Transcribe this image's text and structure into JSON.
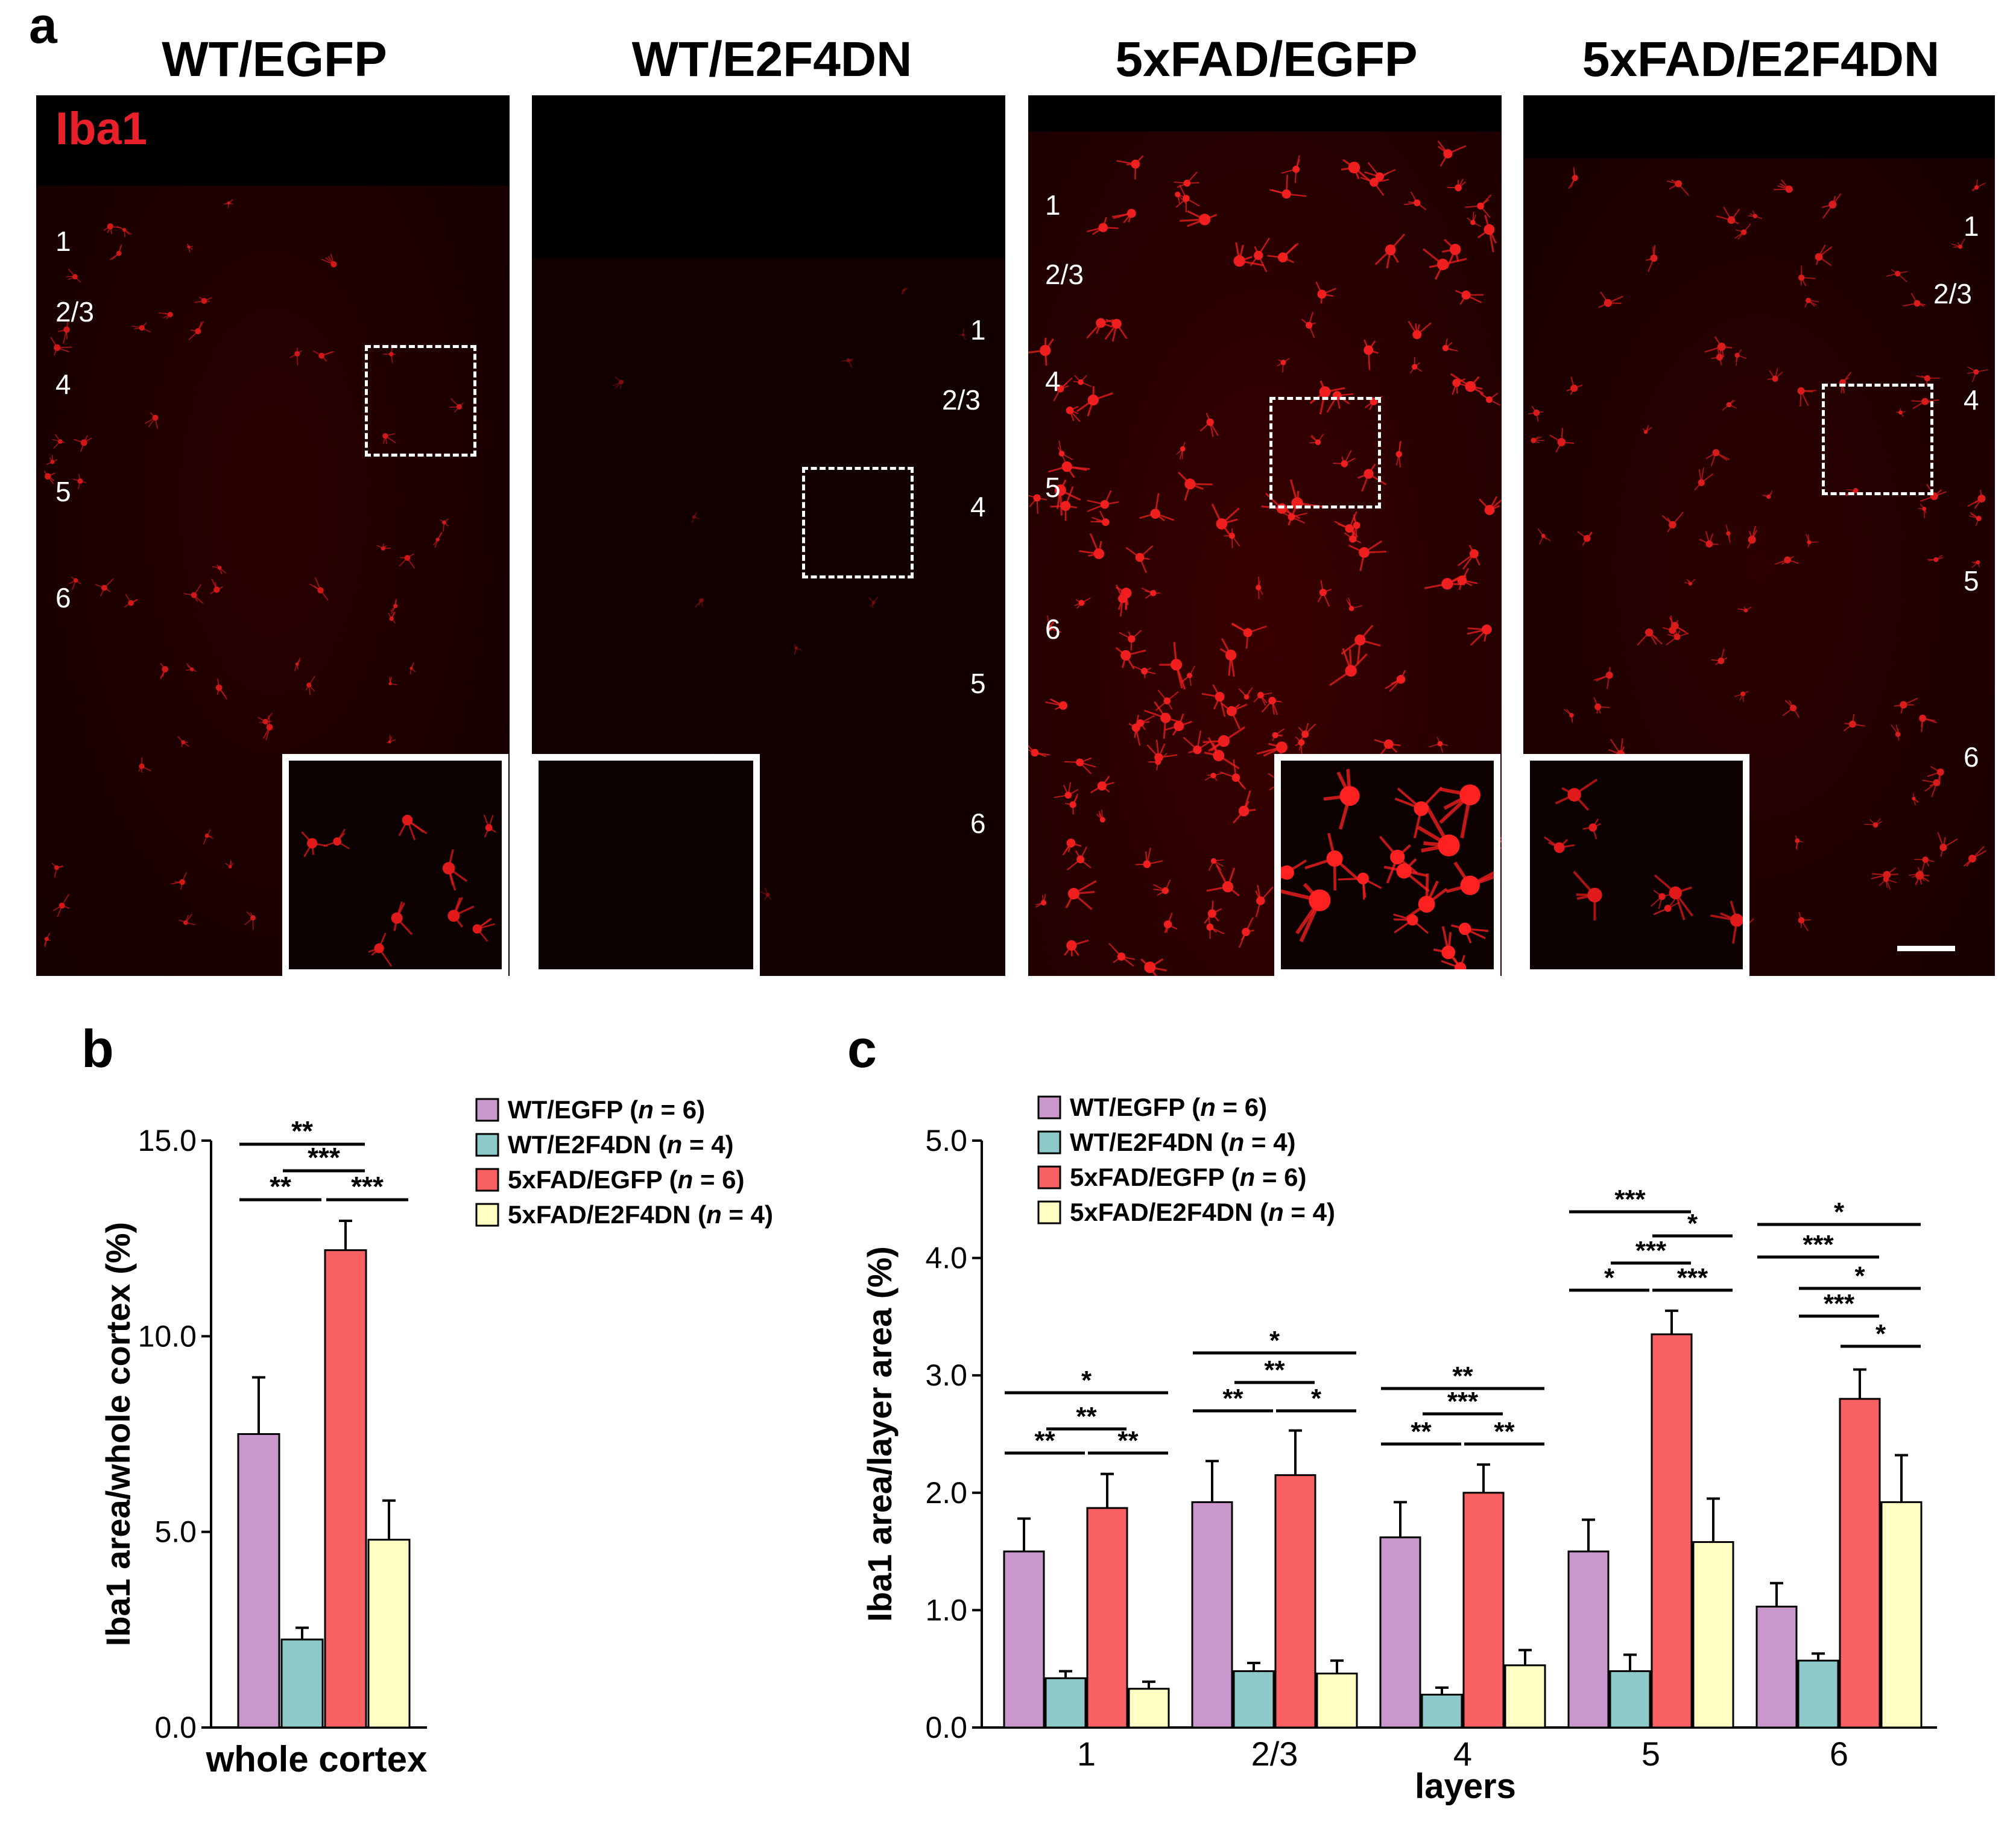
{
  "panel_a": {
    "letter": "a",
    "stain_label": "Iba1",
    "panels": [
      {
        "title": "WT/EGFP",
        "layers": [
          "1",
          "2/3",
          "4",
          "5",
          "6"
        ]
      },
      {
        "title": "WT/E2F4DN",
        "layers": [
          "1",
          "2/3",
          "4",
          "5",
          "6"
        ]
      },
      {
        "title": "5xFAD/EGFP",
        "layers": [
          "1",
          "2/3",
          "4",
          "5",
          "6"
        ]
      },
      {
        "title": "5xFAD/E2F4DN",
        "layers": [
          "1",
          "2/3",
          "4",
          "5",
          "6"
        ]
      }
    ]
  },
  "chart_data": [
    {
      "panel": "b",
      "type": "bar",
      "ylabel": "Iba1 area/whole cortex (%)",
      "xlabel": "whole cortex",
      "ylim": [
        0,
        15
      ],
      "yticks": [
        "0.0",
        "5.0",
        "10.0",
        "15.0"
      ],
      "series": [
        {
          "name": "WT/EGFP",
          "n": "6",
          "color": "#c997cb",
          "value": 7.5,
          "error": 1.45
        },
        {
          "name": "WT/E2F4DN",
          "n": "4",
          "color": "#8ec9c9",
          "value": 2.25,
          "error": 0.3
        },
        {
          "name": "5xFAD/EGFP",
          "n": "6",
          "color": "#f86061",
          "value": 12.2,
          "error": 0.75
        },
        {
          "name": "5xFAD/E2F4DN",
          "n": "4",
          "color": "#ffffc4",
          "value": 4.8,
          "error": 1.0
        }
      ],
      "significance": [
        {
          "from": 0,
          "to": 2,
          "label": "**"
        },
        {
          "from": 1,
          "to": 2,
          "label": "***"
        },
        {
          "from": 0,
          "to": 1,
          "label": "**"
        },
        {
          "from": 2,
          "to": 3,
          "label": "***"
        }
      ]
    },
    {
      "panel": "c",
      "type": "bar",
      "ylabel": "Iba1 area/layer area (%)",
      "xlabel": "layers",
      "ylim": [
        0,
        5
      ],
      "yticks": [
        "0.0",
        "1.0",
        "2.0",
        "3.0",
        "4.0",
        "5.0"
      ],
      "categories": [
        "1",
        "2/3",
        "4",
        "5",
        "6"
      ],
      "series": [
        {
          "name": "WT/EGFP",
          "n": "6",
          "color": "#c997cb",
          "values": [
            1.5,
            1.92,
            1.62,
            1.5,
            1.03
          ],
          "errors": [
            0.28,
            0.35,
            0.3,
            0.27,
            0.2
          ]
        },
        {
          "name": "WT/E2F4DN",
          "n": "4",
          "color": "#8ec9c9",
          "values": [
            0.42,
            0.48,
            0.28,
            0.48,
            0.57
          ],
          "errors": [
            0.06,
            0.07,
            0.06,
            0.14,
            0.06
          ]
        },
        {
          "name": "5xFAD/EGFP",
          "n": "6",
          "color": "#f86061",
          "values": [
            1.87,
            2.15,
            2.0,
            3.35,
            2.8
          ],
          "errors": [
            0.29,
            0.38,
            0.24,
            0.2,
            0.25
          ]
        },
        {
          "name": "5xFAD/E2F4DN",
          "n": "4",
          "color": "#ffffc4",
          "values": [
            0.33,
            0.46,
            0.53,
            1.58,
            1.92
          ],
          "errors": [
            0.06,
            0.11,
            0.13,
            0.37,
            0.4
          ]
        }
      ],
      "significance": [
        {
          "category": 0,
          "from": 0,
          "to": 3,
          "label": "*"
        },
        {
          "category": 0,
          "from": 1,
          "to": 2,
          "label": "**"
        },
        {
          "category": 0,
          "from": 0,
          "to": 1,
          "label": "**"
        },
        {
          "category": 0,
          "from": 2,
          "to": 3,
          "label": "**"
        },
        {
          "category": 1,
          "from": 0,
          "to": 3,
          "label": "*"
        },
        {
          "category": 1,
          "from": 1,
          "to": 2,
          "label": "**"
        },
        {
          "category": 1,
          "from": 0,
          "to": 1,
          "label": "**"
        },
        {
          "category": 1,
          "from": 2,
          "to": 3,
          "label": "*"
        },
        {
          "category": 2,
          "from": 0,
          "to": 3,
          "label": "**"
        },
        {
          "category": 2,
          "from": 1,
          "to": 2,
          "label": "***"
        },
        {
          "category": 2,
          "from": 0,
          "to": 1,
          "label": "**"
        },
        {
          "category": 2,
          "from": 2,
          "to": 3,
          "label": "**"
        },
        {
          "category": 3,
          "from": 0,
          "to": 2,
          "label": "***"
        },
        {
          "category": 3,
          "from": 2,
          "to": 3,
          "label": "*"
        },
        {
          "category": 3,
          "from": 1,
          "to": 2,
          "label": "***"
        },
        {
          "category": 3,
          "from": 0,
          "to": 1,
          "label": "*"
        },
        {
          "category": 3,
          "from": 2,
          "to": 3,
          "label": "***"
        },
        {
          "category": 4,
          "from": 0,
          "to": 3,
          "label": "*"
        },
        {
          "category": 4,
          "from": 0,
          "to": 2,
          "label": "***"
        },
        {
          "category": 4,
          "from": 1,
          "to": 3,
          "label": "*"
        },
        {
          "category": 4,
          "from": 1,
          "to": 2,
          "label": "***"
        },
        {
          "category": 4,
          "from": 2,
          "to": 3,
          "label": "*"
        }
      ]
    }
  ]
}
